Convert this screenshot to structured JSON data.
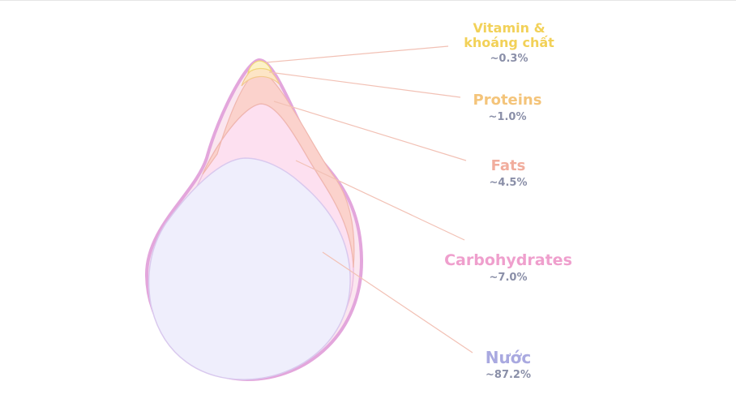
{
  "components": [
    {
      "key": "vitamin",
      "name_line1": "Vitamin &",
      "name_line2": "khoáng chất",
      "percent": "~0.3%",
      "value": 0.3,
      "color": "#f2d776"
    },
    {
      "key": "proteins",
      "name_line1": "Proteins",
      "name_line2": "",
      "percent": "~1.0%",
      "value": 1.0,
      "color": "#f4c98a"
    },
    {
      "key": "fats",
      "name_line1": "Fats",
      "name_line2": "",
      "percent": "~4.5%",
      "value": 4.5,
      "color": "#f2b3a3"
    },
    {
      "key": "carbohydrates",
      "name_line1": "Carbohydrates",
      "name_line2": "",
      "percent": "~7.0%",
      "value": 7.0,
      "color": "#f0a8cf"
    },
    {
      "key": "nuoc",
      "name_line1": "Nước",
      "name_line2": "",
      "percent": "~87.2%",
      "value": 87.2,
      "color": "#b3b3e3"
    }
  ],
  "colors": {
    "outline": "#e3a6dc",
    "leader_line": "#f2c1b5",
    "water_fill": "#efeefc",
    "carb_fill": "#fde0f0",
    "fat_fill": "#fbd7d2",
    "protein_fill": "#fde5c6",
    "vitamin_fill": "#fdf2c8"
  }
}
